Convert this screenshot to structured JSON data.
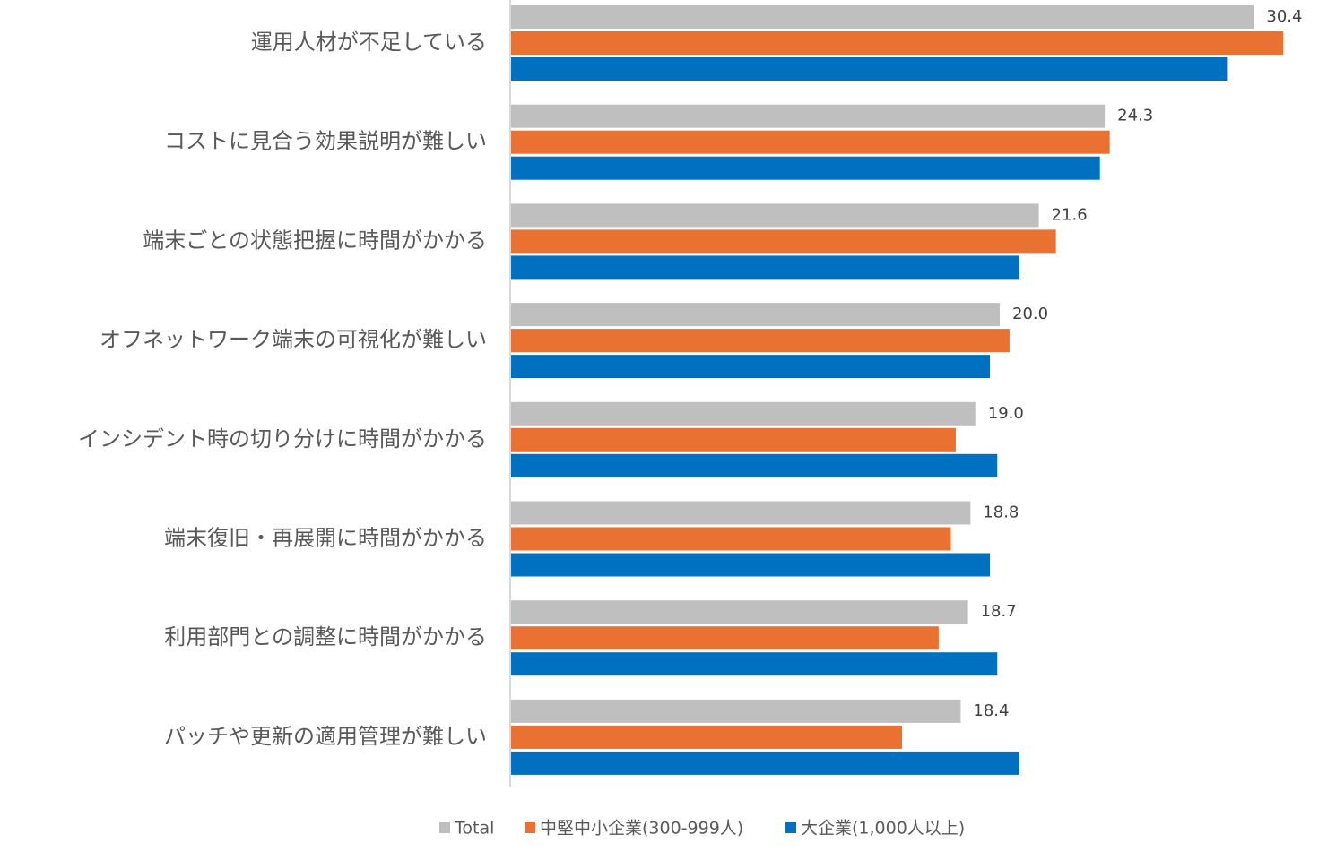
{
  "chart_data": {
    "type": "bar",
    "orientation": "horizontal",
    "categories": [
      "運用人材が不足している",
      "コストに見合う効果説明が難しい",
      "端末ごとの状態把握に時間がかかる",
      "オフネットワーク端末の可視化が難しい",
      "インシデント時の切り分けに時間がかかる",
      "端末復旧・再展開に時間がかかる",
      "利用部門との調整に時間がかかる",
      "パッチや更新の適用管理が難しい"
    ],
    "series": [
      {
        "name": "Total",
        "color": "#bfbfbf",
        "values": [
          30.4,
          24.3,
          21.6,
          20.0,
          19.0,
          18.8,
          18.7,
          18.4
        ],
        "labels": [
          "30.4",
          "24.3",
          "21.6",
          "20.0",
          "19.0",
          "18.8",
          "18.7",
          "18.4"
        ]
      },
      {
        "name": "中堅中小企業(300-999人)",
        "color": "#e97132",
        "values": [
          31.6,
          24.5,
          22.3,
          20.4,
          18.2,
          18.0,
          17.5,
          16.0
        ]
      },
      {
        "name": "大企業(1,000人以上)",
        "color": "#0070c0",
        "values": [
          29.3,
          24.1,
          20.8,
          19.6,
          19.9,
          19.6,
          19.9,
          20.8
        ]
      }
    ],
    "xlim": [
      0,
      33
    ],
    "grid": false,
    "legend_position": "bottom"
  }
}
